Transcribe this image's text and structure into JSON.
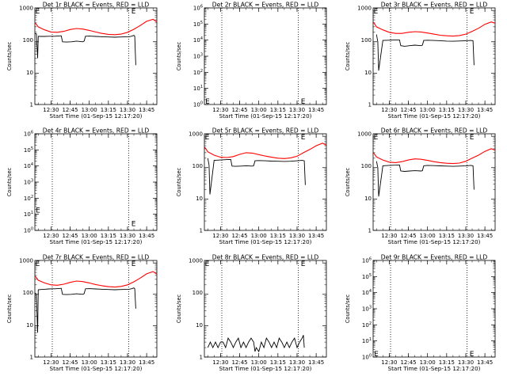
{
  "chart_data": [
    {
      "type": "line",
      "title": "Det 1r BLACK = Events, RED = LLD",
      "xlabel": "Start Time (01-Sep-15 12:17:20)",
      "ylabel": "Counts/sec",
      "xlim": [
        "12:17:20",
        "13:53:00"
      ],
      "ylim": [
        1,
        1200
      ],
      "yscale": "log",
      "xticks": [
        "12:30",
        "12:45",
        "13:00",
        "13:15",
        "13:30",
        "13:45"
      ],
      "yticks": [
        "1",
        "10",
        "100",
        "1000"
      ],
      "series": [
        {
          "color": "#000000",
          "x": [
            "12:17:30",
            "12:18:30",
            "12:19:30",
            "12:20:00",
            "12:22:00",
            "12:25:00",
            "12:28:00",
            "12:31:00",
            "12:33:00",
            "12:35:00",
            "12:38:00",
            "12:39:00",
            "12:42:00",
            "12:46:00",
            "12:50:00",
            "12:55:00",
            "12:56:00",
            "12:57:00",
            "13:00:00",
            "13:05:00",
            "13:10:00",
            "13:15:00",
            "13:20:00",
            "13:25:00",
            "13:31:00",
            "13:33:00",
            "13:35:00",
            "13:35:40",
            "13:36:30"
          ],
          "values": [
            180,
            180,
            30,
            150,
            148,
            148,
            150,
            150,
            150,
            152,
            155,
            100,
            98,
            100,
            105,
            100,
            105,
            150,
            152,
            148,
            145,
            142,
            140,
            142,
            145,
            150,
            160,
            150,
            18
          ]
        },
        {
          "color": "#ff0000",
          "x": [
            "12:17:40",
            "12:20:00",
            "12:25:00",
            "12:30:00",
            "12:35:00",
            "12:40:00",
            "12:45:00",
            "12:50:00",
            "12:55:00",
            "13:00:00",
            "13:05:00",
            "13:10:00",
            "13:15:00",
            "13:20:00",
            "13:25:00",
            "13:30:00",
            "13:35:00",
            "13:40:00",
            "13:45:00",
            "13:50:00",
            "13:53:00"
          ],
          "values": [
            400,
            300,
            240,
            205,
            200,
            215,
            245,
            265,
            255,
            230,
            205,
            185,
            172,
            168,
            175,
            200,
            250,
            330,
            450,
            520,
            430
          ]
        }
      ],
      "markers": [
        {
          "x": "12:17:45",
          "y": 1000,
          "label": "E"
        },
        {
          "x": "13:33:00",
          "y": 1000,
          "label": "E"
        }
      ],
      "vlines": [
        "12:31:00",
        "13:31:00"
      ]
    },
    {
      "type": "line",
      "title": "Det 2r BLACK = Events, RED = LLD",
      "xlabel": "Start Time (01-Sep-15 12:17:20)",
      "ylabel": "Counts/sec",
      "xlim": [
        "12:17:20",
        "13:53:00"
      ],
      "ylim": [
        1,
        1000000
      ],
      "yscale": "log",
      "xticks": [
        "12:30",
        "12:45",
        "13:00",
        "13:15",
        "13:30",
        "13:45"
      ],
      "yticks": [
        "10^0",
        "10^1",
        "10^2",
        "10^3",
        "10^4",
        "10^5",
        "10^6"
      ],
      "series": [],
      "markers": [
        {
          "x": "12:18:00",
          "y": 1.8,
          "label": "E"
        },
        {
          "x": "13:33:00",
          "y": 1.8,
          "label": "E"
        }
      ],
      "vlines": [
        "12:31:00",
        "13:31:00"
      ]
    },
    {
      "type": "line",
      "title": "Det 3r BLACK = Events, RED = LLD",
      "xlabel": "Start Time (01-Sep-15 12:17:20)",
      "ylabel": "Counts/sec",
      "xlim": [
        "12:17:20",
        "13:53:00"
      ],
      "ylim": [
        1,
        1200
      ],
      "yscale": "log",
      "xticks": [
        "12:30",
        "12:45",
        "13:00",
        "13:15",
        "13:30",
        "13:45"
      ],
      "yticks": [
        "1",
        "10",
        "100",
        "1000"
      ],
      "series": [
        {
          "color": "#000000",
          "x": [
            "12:20:00",
            "12:21:00",
            "12:21:40",
            "12:25:00",
            "12:30:00",
            "12:35:00",
            "12:38:00",
            "12:39:00",
            "12:42:00",
            "12:46:00",
            "12:50:00",
            "12:55:00",
            "12:56:00",
            "12:57:00",
            "13:00:00",
            "13:05:00",
            "13:10:00",
            "13:15:00",
            "13:20:00",
            "13:25:00",
            "13:30:00",
            "13:34:00",
            "13:35:40",
            "13:36:30"
          ],
          "values": [
            170,
            100,
            12,
            110,
            112,
            115,
            115,
            75,
            72,
            75,
            78,
            75,
            78,
            110,
            112,
            110,
            108,
            105,
            104,
            106,
            108,
            110,
            108,
            18
          ]
        },
        {
          "color": "#ff0000",
          "x": [
            "12:17:40",
            "12:20:00",
            "12:25:00",
            "12:30:00",
            "12:35:00",
            "12:40:00",
            "12:45:00",
            "12:50:00",
            "12:55:00",
            "13:00:00",
            "13:05:00",
            "13:10:00",
            "13:15:00",
            "13:20:00",
            "13:25:00",
            "13:30:00",
            "13:35:00",
            "13:40:00",
            "13:45:00",
            "13:50:00",
            "13:53:00"
          ],
          "values": [
            420,
            300,
            240,
            200,
            185,
            185,
            200,
            210,
            205,
            190,
            175,
            162,
            155,
            152,
            158,
            175,
            215,
            270,
            360,
            430,
            390
          ]
        }
      ],
      "markers": [
        {
          "x": "12:17:45",
          "y": 1000,
          "label": "E"
        },
        {
          "x": "13:33:00",
          "y": 1000,
          "label": "E"
        }
      ],
      "vlines": [
        "12:31:00",
        "13:31:00"
      ]
    },
    {
      "type": "line",
      "title": "Det 4r BLACK = Events, RED = LLD",
      "xlabel": "Start Time (01-Sep-15 12:17:20)",
      "ylabel": "Counts/sec",
      "xlim": [
        "12:17:20",
        "13:53:00"
      ],
      "ylim": [
        1,
        1000000
      ],
      "yscale": "log",
      "xticks": [
        "12:30",
        "12:45",
        "13:00",
        "13:15",
        "13:30",
        "13:45"
      ],
      "yticks": [
        "10^0",
        "10^1",
        "10^2",
        "10^3",
        "10^4",
        "10^5",
        "10^6"
      ],
      "series": [],
      "markers": [
        {
          "x": "12:18:00",
          "y": 20,
          "label": "E"
        },
        {
          "x": "13:33:00",
          "y": 3,
          "label": "E"
        }
      ],
      "vlines": [
        "12:31:00",
        "13:31:00"
      ]
    },
    {
      "type": "line",
      "title": "Det 5r BLACK = Events, RED = LLD",
      "xlabel": "Start Time (01-Sep-15 12:17:20)",
      "ylabel": "Counts/sec",
      "xlim": [
        "12:17:20",
        "13:53:00"
      ],
      "ylim": [
        1,
        1200
      ],
      "yscale": "log",
      "xticks": [
        "12:30",
        "12:45",
        "13:00",
        "13:15",
        "13:30",
        "13:45"
      ],
      "yticks": [
        "1",
        "10",
        "100",
        "1000"
      ],
      "series": [
        {
          "color": "#000000",
          "x": [
            "12:20:00",
            "12:21:00",
            "12:21:40",
            "12:25:00",
            "12:30:00",
            "12:35:00",
            "12:38:00",
            "12:39:00",
            "12:42:00",
            "12:46:00",
            "12:50:00",
            "12:55:00",
            "12:56:00",
            "12:57:00",
            "13:00:00",
            "13:05:00",
            "13:10:00",
            "13:15:00",
            "13:20:00",
            "13:25:00",
            "13:30:00",
            "13:34:00",
            "13:35:40",
            "13:36:30"
          ],
          "values": [
            200,
            120,
            14,
            170,
            175,
            180,
            182,
            112,
            110,
            112,
            115,
            112,
            115,
            165,
            168,
            165,
            162,
            160,
            158,
            160,
            165,
            170,
            165,
            28
          ]
        },
        {
          "color": "#ff0000",
          "x": [
            "12:17:40",
            "12:20:00",
            "12:25:00",
            "12:30:00",
            "12:35:00",
            "12:40:00",
            "12:45:00",
            "12:50:00",
            "12:55:00",
            "13:00:00",
            "13:05:00",
            "13:10:00",
            "13:15:00",
            "13:20:00",
            "13:25:00",
            "13:30:00",
            "13:35:00",
            "13:40:00",
            "13:45:00",
            "13:50:00",
            "13:53:00"
          ],
          "values": [
            450,
            320,
            250,
            215,
            210,
            225,
            265,
            300,
            290,
            260,
            235,
            215,
            200,
            195,
            205,
            230,
            300,
            380,
            500,
            600,
            520
          ]
        }
      ],
      "markers": [
        {
          "x": "12:17:45",
          "y": 1000,
          "label": "E"
        },
        {
          "x": "13:33:00",
          "y": 1000,
          "label": "E"
        }
      ],
      "vlines": [
        "12:31:00",
        "13:31:00"
      ]
    },
    {
      "type": "line",
      "title": "Det 6r BLACK = Events, RED = LLD",
      "xlabel": "Start Time (01-Sep-15 12:17:20)",
      "ylabel": "Counts/sec",
      "xlim": [
        "12:17:20",
        "13:53:00"
      ],
      "ylim": [
        1,
        1200
      ],
      "yscale": "log",
      "xticks": [
        "12:30",
        "12:45",
        "13:00",
        "13:15",
        "13:30",
        "13:45"
      ],
      "yticks": [
        "1",
        "10",
        "100",
        "1000"
      ],
      "series": [
        {
          "color": "#000000",
          "x": [
            "12:20:00",
            "12:21:00",
            "12:21:40",
            "12:25:00",
            "12:30:00",
            "12:35:00",
            "12:38:00",
            "12:39:00",
            "12:42:00",
            "12:46:00",
            "12:50:00",
            "12:55:00",
            "12:56:00",
            "12:57:00",
            "13:00:00",
            "13:05:00",
            "13:10:00",
            "13:15:00",
            "13:20:00",
            "13:25:00",
            "13:30:00",
            "13:34:00",
            "13:35:40",
            "13:36:30"
          ],
          "values": [
            160,
            100,
            12,
            115,
            118,
            120,
            122,
            78,
            76,
            78,
            80,
            78,
            80,
            115,
            118,
            116,
            114,
            112,
            110,
            112,
            115,
            118,
            115,
            20
          ]
        },
        {
          "color": "#ff0000",
          "x": [
            "12:17:40",
            "12:20:00",
            "12:25:00",
            "12:30:00",
            "12:35:00",
            "12:40:00",
            "12:45:00",
            "12:50:00",
            "12:55:00",
            "13:00:00",
            "13:05:00",
            "13:10:00",
            "13:15:00",
            "13:20:00",
            "13:25:00",
            "13:30:00",
            "13:35:00",
            "13:40:00",
            "13:45:00",
            "13:50:00",
            "13:53:00"
          ],
          "values": [
            300,
            220,
            175,
            150,
            145,
            155,
            175,
            190,
            185,
            170,
            155,
            145,
            138,
            135,
            140,
            160,
            200,
            250,
            330,
            400,
            360
          ]
        }
      ],
      "markers": [
        {
          "x": "12:17:45",
          "y": 1000,
          "label": "E"
        },
        {
          "x": "13:33:00",
          "y": 1000,
          "label": "E"
        }
      ],
      "vlines": [
        "12:31:00",
        "13:31:00"
      ]
    },
    {
      "type": "line",
      "title": "Det 7r BLACK = Events, RED = LLD",
      "xlabel": "Start Time (01-Sep-15 12:17:20)",
      "ylabel": "Counts/sec",
      "xlim": [
        "12:17:20",
        "13:53:00"
      ],
      "ylim": [
        1,
        1200
      ],
      "yscale": "log",
      "xticks": [
        "12:30",
        "12:45",
        "13:00",
        "13:15",
        "13:30",
        "13:45"
      ],
      "yticks": [
        "1",
        "10",
        "100",
        "1000"
      ],
      "series": [
        {
          "color": "#000000",
          "x": [
            "12:17:30",
            "12:18:30",
            "12:19:30",
            "12:20:00",
            "12:22:00",
            "12:25:00",
            "12:28:00",
            "12:31:00",
            "12:33:00",
            "12:35:00",
            "12:38:00",
            "12:39:00",
            "12:42:00",
            "12:46:00",
            "12:50:00",
            "12:55:00",
            "12:56:00",
            "12:57:00",
            "13:00:00",
            "13:05:00",
            "13:10:00",
            "13:15:00",
            "13:20:00",
            "13:25:00",
            "13:31:00",
            "13:33:00",
            "13:35:00",
            "13:35:40",
            "13:36:30"
          ],
          "values": [
            110,
            100,
            6,
            140,
            142,
            145,
            148,
            150,
            150,
            152,
            155,
            100,
            98,
            100,
            104,
            100,
            105,
            150,
            152,
            148,
            145,
            142,
            140,
            142,
            145,
            150,
            160,
            150,
            35
          ]
        },
        {
          "color": "#ff0000",
          "x": [
            "12:17:40",
            "12:20:00",
            "12:25:00",
            "12:30:00",
            "12:35:00",
            "12:40:00",
            "12:45:00",
            "12:50:00",
            "12:55:00",
            "13:00:00",
            "13:05:00",
            "13:10:00",
            "13:15:00",
            "13:20:00",
            "13:25:00",
            "13:30:00",
            "13:35:00",
            "13:40:00",
            "13:45:00",
            "13:50:00",
            "13:53:00"
          ],
          "values": [
            380,
            280,
            230,
            200,
            195,
            210,
            240,
            265,
            255,
            230,
            205,
            188,
            175,
            170,
            178,
            200,
            250,
            330,
            450,
            530,
            440
          ]
        }
      ],
      "markers": [
        {
          "x": "12:17:45",
          "y": 1000,
          "label": "E"
        },
        {
          "x": "13:33:00",
          "y": 1000,
          "label": "E"
        }
      ],
      "vlines": [
        "12:31:00",
        "13:31:00"
      ]
    },
    {
      "type": "line",
      "title": "Det 8r BLACK = Events, RED = LLD",
      "xlabel": "Start Time (01-Sep-15 12:17:20)",
      "ylabel": "Counts/sec",
      "xlim": [
        "12:17:20",
        "13:53:00"
      ],
      "ylim": [
        1,
        1200
      ],
      "yscale": "log",
      "xticks": [
        "12:30",
        "12:45",
        "13:00",
        "13:15",
        "13:30",
        "13:45"
      ],
      "yticks": [
        "1",
        "10",
        "100",
        "1000"
      ],
      "series": [
        {
          "color": "#000000",
          "x": [
            "12:20:00",
            "12:22:00",
            "12:24:00",
            "12:26:00",
            "12:28:00",
            "12:30:00",
            "12:32:00",
            "12:34:00",
            "12:36:00",
            "12:38:00",
            "12:40:00",
            "12:42:00",
            "12:44:00",
            "12:46:00",
            "12:48:00",
            "12:50:00",
            "12:52:00",
            "12:54:00",
            "12:56:00",
            "12:57:00",
            "12:58:00",
            "13:00:00",
            "13:02:00",
            "13:04:00",
            "13:06:00",
            "13:08:00",
            "13:10:00",
            "13:12:00",
            "13:14:00",
            "13:16:00",
            "13:18:00",
            "13:20:00",
            "13:22:00",
            "13:24:00",
            "13:26:00",
            "13:28:00",
            "13:30:00",
            "13:32:00",
            "13:34:00",
            "13:35:00",
            "13:35:40"
          ],
          "values": [
            2,
            3,
            2,
            3,
            2,
            3,
            3,
            2,
            4,
            3,
            2,
            3,
            4,
            2,
            3,
            2,
            3,
            4,
            3,
            1.5,
            2,
            1.5,
            3,
            2,
            4,
            3,
            2,
            3,
            2,
            4,
            3,
            2,
            3,
            2,
            3,
            4,
            2,
            3,
            4,
            5,
            2
          ]
        }
      ],
      "markers": [
        {
          "x": "12:17:45",
          "y": 1000,
          "label": "E"
        },
        {
          "x": "13:33:00",
          "y": 1000,
          "label": "E"
        }
      ],
      "vlines": [
        "12:31:00",
        "13:31:00"
      ]
    },
    {
      "type": "line",
      "title": "Det 9r BLACK = Events, RED = LLD",
      "xlabel": "Start Time (01-Sep-15 12:17:20)",
      "ylabel": "Counts/sec",
      "xlim": [
        "12:17:20",
        "13:53:00"
      ],
      "ylim": [
        1,
        1000000
      ],
      "yscale": "log",
      "xticks": [
        "12:30",
        "12:45",
        "13:00",
        "13:15",
        "13:30",
        "13:45"
      ],
      "yticks": [
        "10^0",
        "10^1",
        "10^2",
        "10^3",
        "10^4",
        "10^5",
        "10^6"
      ],
      "series": [],
      "markers": [
        {
          "x": "12:18:00",
          "y": 1.8,
          "label": "E"
        },
        {
          "x": "13:33:00",
          "y": 1.8,
          "label": "E"
        }
      ],
      "vlines": [
        "12:31:00",
        "13:31:00"
      ]
    }
  ]
}
